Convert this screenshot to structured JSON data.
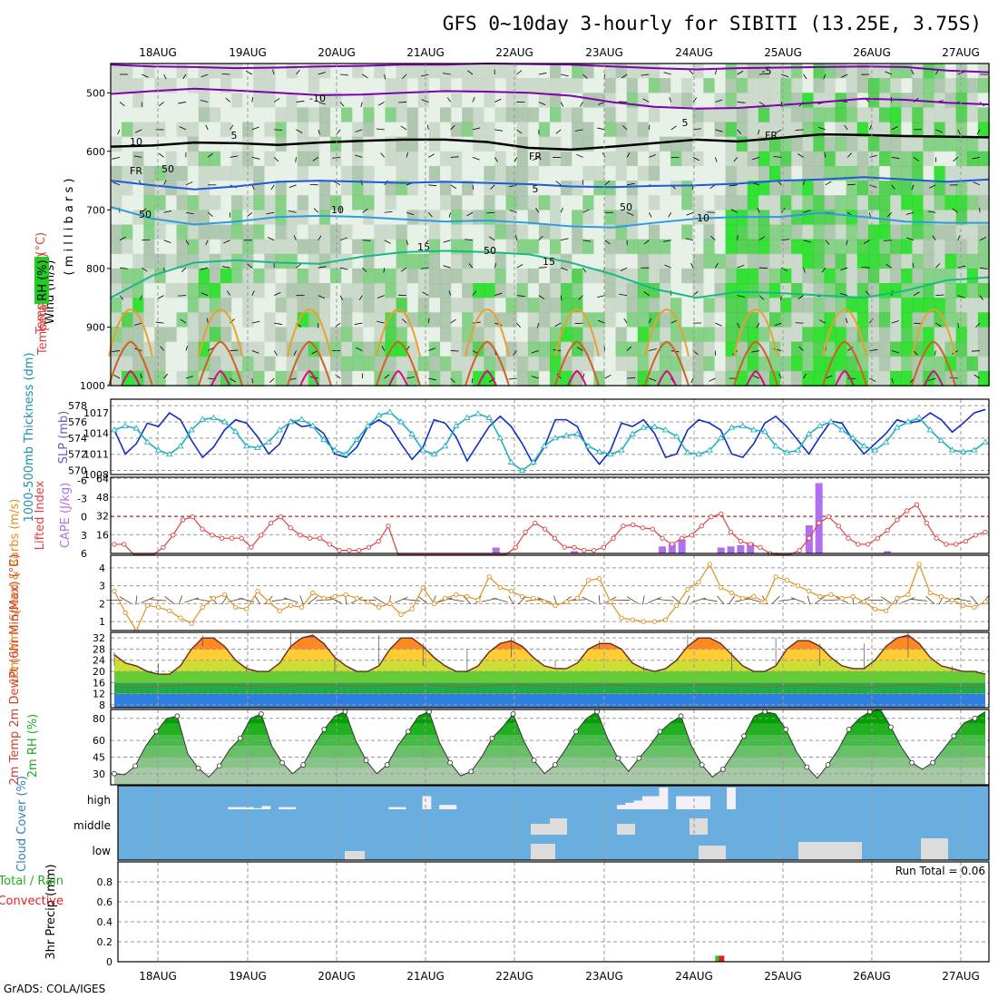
{
  "title": "GFS 0~10day 3-hourly for SIBITI (13.25E, 3.75S)",
  "credit": "GrADS: COLA/IGES",
  "dates": [
    "18AUG",
    "19AUG",
    "20AUG",
    "21AUG",
    "22AUG",
    "23AUG",
    "24AUG",
    "25AUG",
    "26AUG",
    "27AUG"
  ],
  "chart_data": [
    {
      "type": "heatmap",
      "panel": "upper-air",
      "ylabel_wind": "Wind (m/s)",
      "ylabel_temp": "Temperature (°C)",
      "ylabel_rh": "RH (%)",
      "ylabel_p": "( m i l l i b a r s )",
      "yticks": [
        500,
        600,
        700,
        800,
        900,
        1000
      ],
      "ylim": [
        1000,
        450
      ],
      "contour_labels": [
        "-10",
        "-5",
        "5",
        "FR",
        "FR",
        "FR",
        "5",
        "5",
        "10",
        "10",
        "15",
        "15",
        "50",
        "50",
        "50",
        "50",
        "10"
      ],
      "isotherms": [
        {
          "label": "-10",
          "color": "#8000b0",
          "p": [
            452,
            455,
            456,
            458,
            457,
            455,
            454,
            452,
            452,
            450,
            451,
            452,
            455,
            458,
            460,
            458,
            457,
            456,
            455,
            456,
            462,
            465
          ]
        },
        {
          "label": "-5",
          "color": "#8000b0",
          "p": [
            502,
            497,
            493,
            496,
            500,
            504,
            503,
            500,
            497,
            498,
            500,
            505,
            516,
            524,
            527,
            526,
            521,
            516,
            510,
            512,
            517,
            520
          ]
        },
        {
          "label": "FR",
          "color": "#000000",
          "p": [
            592,
            590,
            585,
            586,
            589,
            585,
            582,
            580,
            580,
            584,
            594,
            597,
            592,
            586,
            580,
            583,
            577,
            571,
            572,
            574,
            575,
            576
          ]
        },
        {
          "label": "5",
          "color": "#1c5ad8",
          "p": [
            650,
            658,
            665,
            660,
            652,
            650,
            652,
            654,
            652,
            654,
            656,
            660,
            661,
            659,
            658,
            655,
            650,
            648,
            644,
            648,
            652,
            648
          ]
        },
        {
          "label": "10",
          "color": "#2e9ae0",
          "p": [
            695,
            715,
            725,
            720,
            712,
            710,
            712,
            716,
            720,
            718,
            722,
            728,
            730,
            722,
            715,
            712,
            712,
            705,
            712,
            720,
            722,
            722
          ]
        },
        {
          "label": "15",
          "color": "#18b884",
          "p": [
            850,
            812,
            790,
            786,
            790,
            792,
            780,
            772,
            770,
            772,
            776,
            790,
            810,
            835,
            850,
            840,
            842,
            846,
            850,
            838,
            820,
            815
          ]
        }
      ]
    },
    {
      "type": "line",
      "panel": "thickness-slp",
      "ylabel_left": "1000-500mb Thickness (dm)",
      "ylabel_right": "SLP (mb)",
      "left_ticks": [
        570,
        572,
        574,
        576,
        578
      ],
      "right_ticks": [
        1008,
        1011,
        1014,
        1017
      ],
      "left_lim": [
        569.5,
        578.8
      ],
      "right_lim": [
        1008,
        1019
      ],
      "series": [
        {
          "color": "#1030c0",
          "axis": "right",
          "values": [
            1014.5,
            1011,
            1012.5,
            1015.5,
            1015,
            1017,
            1016,
            1013,
            1010.5,
            1012,
            1014.5,
            1016,
            1015.5,
            1013.5,
            1011,
            1012.5,
            1016,
            1015,
            1015.2,
            1014,
            1011,
            1010.5,
            1012,
            1015,
            1016,
            1015,
            1012.5,
            1010.2,
            1012,
            1016,
            1015.5,
            1013.5,
            1010,
            1012.5,
            1015,
            1016.5,
            1015,
            1012.5,
            1009.5,
            1012,
            1016,
            1016,
            1015,
            1011.5,
            1009.5,
            1011.5,
            1015.5,
            1015,
            1016,
            1014,
            1010.5,
            1011,
            1014.5,
            1016,
            1015.5,
            1014.5,
            1011,
            1010.5,
            1012.5,
            1015.5,
            1016.5,
            1015,
            1013,
            1011,
            1013.5,
            1015.8,
            1015.5,
            1013,
            1011,
            1012.5,
            1014,
            1016,
            1015.5,
            1015.8,
            1017,
            1016,
            1014.2,
            1015.5,
            1017,
            1017.5
          ]
        },
        {
          "color": "#20b0c0",
          "axis": "left",
          "values": [
            575,
            575.5,
            575.2,
            573.5,
            572.5,
            572,
            573,
            575,
            576.3,
            576.5,
            576,
            574.8,
            573,
            572.8,
            573.5,
            575,
            576,
            576.3,
            575.5,
            573.8,
            572.5,
            572,
            573.8,
            575.5,
            576.8,
            577.2,
            576,
            574.5,
            572.5,
            572,
            573,
            575.5,
            576.5,
            577,
            576.5,
            574,
            571,
            570,
            571,
            573,
            574,
            574.3,
            574.5,
            573,
            572.3,
            572,
            572.5,
            574.5,
            575.3,
            575.4,
            575,
            574.2,
            572.2,
            572,
            572.5,
            574,
            575.3,
            575.5,
            575,
            574.8,
            573,
            572.2,
            572.5,
            574.5,
            575.5,
            576,
            575,
            574,
            573,
            572.5,
            573.5,
            575.3,
            576,
            576.5,
            575,
            573.7,
            572.5,
            572.3,
            572.5,
            573.5
          ]
        }
      ]
    },
    {
      "type": "bar",
      "panel": "cape-li",
      "ylabel_left": "Lifted Index",
      "ylabel_right": "CAPE (J/kg)",
      "li_ticks": [
        6,
        3,
        0,
        -3,
        -6
      ],
      "cape_ticks": [
        16,
        32,
        48,
        64
      ],
      "li_lim": [
        6,
        -6.5
      ],
      "cape_lim": [
        0,
        65
      ],
      "li": [
        4.5,
        4.5,
        6.5,
        6.5,
        6.5,
        5,
        3,
        0.5,
        0,
        2,
        3,
        3.5,
        3.5,
        3.5,
        5,
        3,
        1,
        0,
        1.8,
        3,
        3.5,
        3.5,
        4.5,
        5.5,
        5.5,
        5.5,
        5,
        4,
        1.5,
        6.5,
        6.5,
        6.5,
        6.5,
        6.5,
        6.5,
        6.5,
        6.5,
        6.5,
        6.5,
        6.5,
        6.5,
        5,
        2.5,
        1,
        2,
        3.5,
        5,
        5,
        5.5,
        5.5,
        5,
        3.5,
        1.5,
        1.3,
        1.8,
        2,
        3.5,
        4.5,
        3.5,
        3,
        1.5,
        0,
        -0.5,
        2.5,
        4,
        4.5,
        5,
        6,
        6.5,
        6.5,
        5.5,
        3.5,
        1,
        0,
        1.5,
        3.5,
        4.5,
        4.5,
        3.5,
        2.2,
        0.5,
        -1,
        -2,
        1,
        3.5,
        4.5,
        4.5,
        4,
        3,
        2.5
      ],
      "cape_bars": [
        {
          "i": 39,
          "v": 5
        },
        {
          "i": 47,
          "v": 2
        },
        {
          "i": 56,
          "v": 6
        },
        {
          "i": 57,
          "v": 8
        },
        {
          "i": 58,
          "v": 12
        },
        {
          "i": 62,
          "v": 5
        },
        {
          "i": 63,
          "v": 6
        },
        {
          "i": 64,
          "v": 7
        },
        {
          "i": 65,
          "v": 9
        },
        {
          "i": 71,
          "v": 24
        },
        {
          "i": 72,
          "v": 60
        },
        {
          "i": 79,
          "v": 2
        }
      ]
    },
    {
      "type": "line",
      "panel": "wind10m",
      "ylabel": "10m Wind Speed & Barbs (m/s)",
      "yticks": [
        1,
        2,
        3,
        4
      ],
      "ylim": [
        0.5,
        4.7
      ],
      "values": [
        2.7,
        1.5,
        0.5,
        1.9,
        1.8,
        1.6,
        1.2,
        0.9,
        1.8,
        2.3,
        2.5,
        1.8,
        1.7,
        2.7,
        2.1,
        1.6,
        1.9,
        1.8,
        2.6,
        2.3,
        2.4,
        2.5,
        2.3,
        2.1,
        1.8,
        2.0,
        1.4,
        1.7,
        2.9,
        2.0,
        2.3,
        2.5,
        2.4,
        2.2,
        3.5,
        2.9,
        2.7,
        2.4,
        2.3,
        2.1,
        1.9,
        2.1,
        2.3,
        3.3,
        3.4,
        2.1,
        1.2,
        1.1,
        1.0,
        1.0,
        1.1,
        1.9,
        2.8,
        3.2,
        4.2,
        2.9,
        2.6,
        2.3,
        2.4,
        2.1,
        3.5,
        3.3,
        3.0,
        2.7,
        2.4,
        2.5,
        2.3,
        2.4,
        2.1,
        1.7,
        1.6,
        2.3,
        2.5,
        4.2,
        2.6,
        2.4,
        2.2,
        1.9,
        1.8,
        2.1
      ]
    },
    {
      "type": "area",
      "panel": "temp2m",
      "ylabel": "2m Temp 2m DewPt (6hr Min/Max) (°C)",
      "yticks": [
        8,
        12,
        16,
        20,
        24,
        28,
        32
      ],
      "ylim": [
        7,
        34
      ],
      "temp": [
        26,
        23,
        22,
        20,
        19,
        19,
        22,
        28,
        32,
        32,
        29,
        24,
        21,
        20,
        20,
        23,
        29,
        32,
        33,
        30,
        25,
        22,
        20,
        20,
        22,
        28,
        32,
        32,
        29,
        25,
        22,
        20,
        20,
        22,
        27,
        30,
        31,
        29,
        25,
        22,
        21,
        21,
        23,
        28,
        30,
        30,
        28,
        23,
        21,
        20,
        21,
        24,
        29,
        32,
        32,
        30,
        26,
        22,
        20,
        20,
        22,
        28,
        31,
        31,
        29,
        25,
        22,
        21,
        21,
        24,
        29,
        32,
        33,
        30,
        25,
        22,
        21,
        20,
        20,
        19
      ],
      "dewpt": [
        14.5,
        14.3,
        14.2,
        14.4,
        14.6,
        14.8,
        15.0,
        15.2,
        15.3,
        15.3,
        15.2,
        15.0,
        14.8,
        14.6,
        14.4,
        14.5,
        14.8,
        15.1,
        15.2,
        15.2,
        15.0,
        14.8,
        14.6,
        14.6,
        14.8,
        15.0,
        15.2,
        15.3,
        15.2,
        15.0,
        14.7,
        14.5,
        14.3,
        14.5,
        14.9,
        15.2,
        15.3,
        15.2,
        14.9,
        14.6,
        14.4,
        14.3,
        14.5,
        14.8,
        15.0,
        15.1,
        15.0,
        14.8,
        14.6,
        14.5,
        14.5,
        14.6,
        14.9,
        15.1,
        15.2,
        15.1,
        14.9,
        14.7,
        14.5,
        14.4,
        14.5,
        14.8,
        15.0,
        15.1,
        15.0,
        14.8,
        14.6,
        14.4,
        14.3,
        14.4,
        14.7,
        15.0,
        15.2,
        15.1,
        14.9,
        14.6,
        14.4,
        14.3,
        14.4,
        14.5
      ]
    },
    {
      "type": "area",
      "panel": "rh2m",
      "ylabel": "2m RH (%)",
      "yticks": [
        30,
        45,
        60,
        80
      ],
      "ylim": [
        20,
        88
      ],
      "values": [
        30,
        29,
        37,
        55,
        68,
        80,
        82,
        48,
        35,
        27,
        37,
        52,
        62,
        80,
        84,
        55,
        40,
        30,
        38,
        55,
        70,
        82,
        86,
        60,
        42,
        30,
        38,
        55,
        68,
        82,
        86,
        58,
        40,
        28,
        32,
        45,
        62,
        72,
        84,
        60,
        42,
        30,
        38,
        52,
        68,
        80,
        86,
        62,
        44,
        32,
        44,
        55,
        68,
        76,
        82,
        55,
        38,
        27,
        34,
        48,
        64,
        82,
        86,
        84,
        70,
        50,
        36,
        26,
        38,
        52,
        70,
        80,
        86,
        88,
        72,
        54,
        40,
        34,
        40,
        52,
        64,
        76,
        80,
        86
      ]
    },
    {
      "type": "bar",
      "panel": "cloud",
      "ylabel": "Cloud Cover (%)",
      "levels": [
        "high",
        "middle",
        "low"
      ],
      "high": [
        0,
        0,
        0,
        0,
        0,
        0,
        0,
        0,
        0,
        0,
        0,
        0,
        0,
        10,
        10,
        10,
        5,
        15,
        0,
        10,
        10,
        0,
        0,
        0,
        0,
        0,
        0,
        0,
        0,
        0,
        0,
        0,
        10,
        10,
        0,
        0,
        60,
        0,
        20,
        20,
        0,
        0,
        0,
        0,
        0,
        0,
        0,
        0,
        0,
        0,
        0,
        0,
        0,
        0,
        0,
        0,
        0,
        0,
        0,
        20,
        30,
        40,
        60,
        60,
        100,
        0,
        60,
        60,
        60,
        60,
        0,
        0,
        100,
        0,
        0,
        0,
        0,
        0,
        0,
        0,
        0,
        0,
        0,
        0,
        0,
        0,
        0,
        0,
        0,
        0,
        0,
        0,
        0,
        0,
        0,
        0,
        0,
        0,
        0,
        0,
        0,
        0,
        0
      ],
      "middle": [],
      "low": []
    },
    {
      "type": "bar",
      "panel": "precip",
      "ylabel": "3hr Precip (mm)",
      "legend_left": "Total / Rain",
      "legend_left2": "Convective",
      "yticks": [
        0,
        0.2,
        0.4,
        0.6,
        0.8
      ],
      "ylim": [
        0,
        1.0
      ],
      "run_total": "Run Total = 0.06",
      "bars": [
        {
          "i": 55,
          "total": 0.06,
          "conv": 0.06
        }
      ]
    }
  ]
}
